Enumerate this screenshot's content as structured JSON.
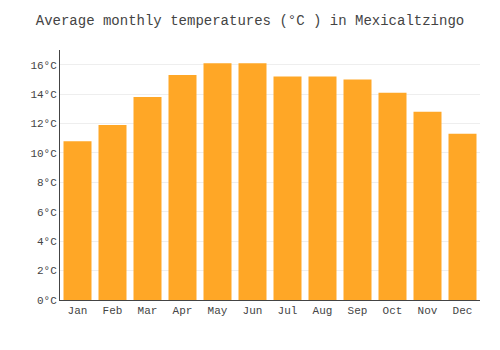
{
  "chart_data": {
    "type": "bar",
    "title": "Average monthly temperatures (°C ) in Mexicaltzingo",
    "categories": [
      "Jan",
      "Feb",
      "Mar",
      "Apr",
      "May",
      "Jun",
      "Jul",
      "Aug",
      "Sep",
      "Oct",
      "Nov",
      "Dec"
    ],
    "values": [
      10.8,
      11.9,
      13.8,
      15.3,
      16.1,
      16.1,
      15.2,
      15.2,
      15.0,
      14.1,
      12.8,
      11.3
    ],
    "color": "#FFA726",
    "ylim": [
      0,
      17
    ],
    "yticks": [
      {
        "value": 0,
        "label": "0°C"
      },
      {
        "value": 2,
        "label": "2°C"
      },
      {
        "value": 4,
        "label": "4°C"
      },
      {
        "value": 6,
        "label": "6°C"
      },
      {
        "value": 8,
        "label": "8°C"
      },
      {
        "value": 10,
        "label": "10°C"
      },
      {
        "value": 12,
        "label": "12°C"
      },
      {
        "value": 14,
        "label": "14°C"
      },
      {
        "value": 16,
        "label": "16°C"
      }
    ],
    "grid": true
  }
}
